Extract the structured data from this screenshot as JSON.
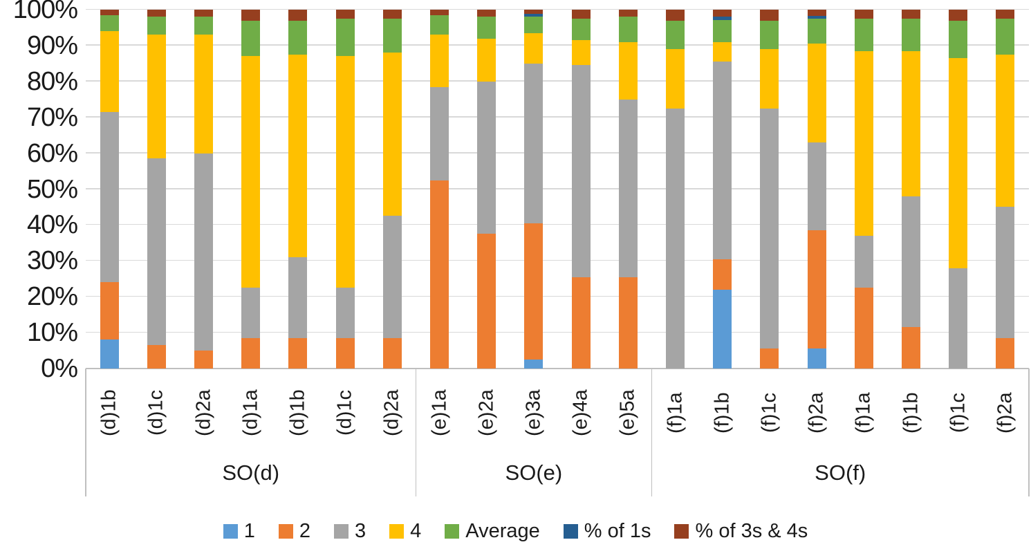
{
  "chart_data": {
    "type": "bar",
    "subtype": "stacked-100-percent-column",
    "title": "",
    "xlabel": "",
    "ylabel": "",
    "ylim": [
      0,
      100
    ],
    "grid": true,
    "legend_position": "bottom",
    "yticks": [
      "0%",
      "10%",
      "20%",
      "30%",
      "40%",
      "50%",
      "60%",
      "70%",
      "80%",
      "90%",
      "100%"
    ],
    "categories": [
      "(d)1b",
      "(d)1c",
      "(d)2a",
      "(d)1a",
      "(d)1b",
      "(d)1c",
      "(d)2a",
      "(e)1a",
      "(e)2a",
      "(e)3a",
      "(e)4a",
      "(e)5a",
      "(f)1a",
      "(f)1b",
      "(f)1c",
      "(f)2a",
      "(f)1a",
      "(f)1b",
      "(f)1c",
      "(f)2a"
    ],
    "groups": [
      {
        "label": "SO(d)",
        "span": 7
      },
      {
        "label": "SO(e)",
        "span": 5
      },
      {
        "label": "SO(f)",
        "span": 8
      }
    ],
    "series": [
      {
        "name": "1",
        "color": "#5B9BD5",
        "values": [
          8,
          0,
          0,
          0,
          0,
          0,
          0,
          0,
          0,
          2.5,
          0,
          0,
          0,
          22,
          0,
          5.5,
          0,
          0,
          0,
          0
        ]
      },
      {
        "name": "2",
        "color": "#ED7D31",
        "values": [
          16,
          6.5,
          5,
          8.5,
          8.5,
          8.5,
          8.5,
          52.5,
          37.5,
          38,
          25.5,
          25.5,
          0,
          8.5,
          5.5,
          33,
          22.5,
          11.5,
          0,
          8.5
        ]
      },
      {
        "name": "3",
        "color": "#A5A5A5",
        "values": [
          47.5,
          52,
          55,
          14,
          22.5,
          14,
          34,
          26,
          42.5,
          44.5,
          59,
          49.5,
          72.5,
          55,
          67,
          24.5,
          14.5,
          36.5,
          28,
          36.5
        ]
      },
      {
        "name": "4",
        "color": "#FFC000",
        "values": [
          22.5,
          34.5,
          33,
          64.5,
          56.5,
          64.5,
          45.5,
          14.5,
          12,
          8.5,
          7,
          16,
          16.5,
          5.5,
          16.5,
          27.5,
          51.5,
          40.5,
          58.5,
          42.5
        ]
      },
      {
        "name": "Average",
        "color": "#70AD47",
        "values": [
          4.5,
          5,
          5,
          10,
          9.5,
          10.5,
          9.5,
          5.5,
          6,
          4.5,
          6,
          7,
          8,
          6.2,
          8,
          7,
          9,
          9,
          10.5,
          10
        ]
      },
      {
        "name": "% of 1s",
        "color": "#255E91",
        "values": [
          0,
          0,
          0,
          0,
          0,
          0,
          0,
          0,
          0,
          0.8,
          0,
          0,
          0,
          0.8,
          0,
          0.7,
          0,
          0,
          0,
          0
        ]
      },
      {
        "name": "% of 3s & 4s",
        "color": "#963F1F",
        "values": [
          1.5,
          2,
          2,
          3,
          3,
          2.5,
          2.5,
          1.5,
          2,
          1.2,
          2.5,
          2,
          3,
          2,
          3,
          1.8,
          2.5,
          2.5,
          3,
          2.5
        ]
      }
    ]
  }
}
